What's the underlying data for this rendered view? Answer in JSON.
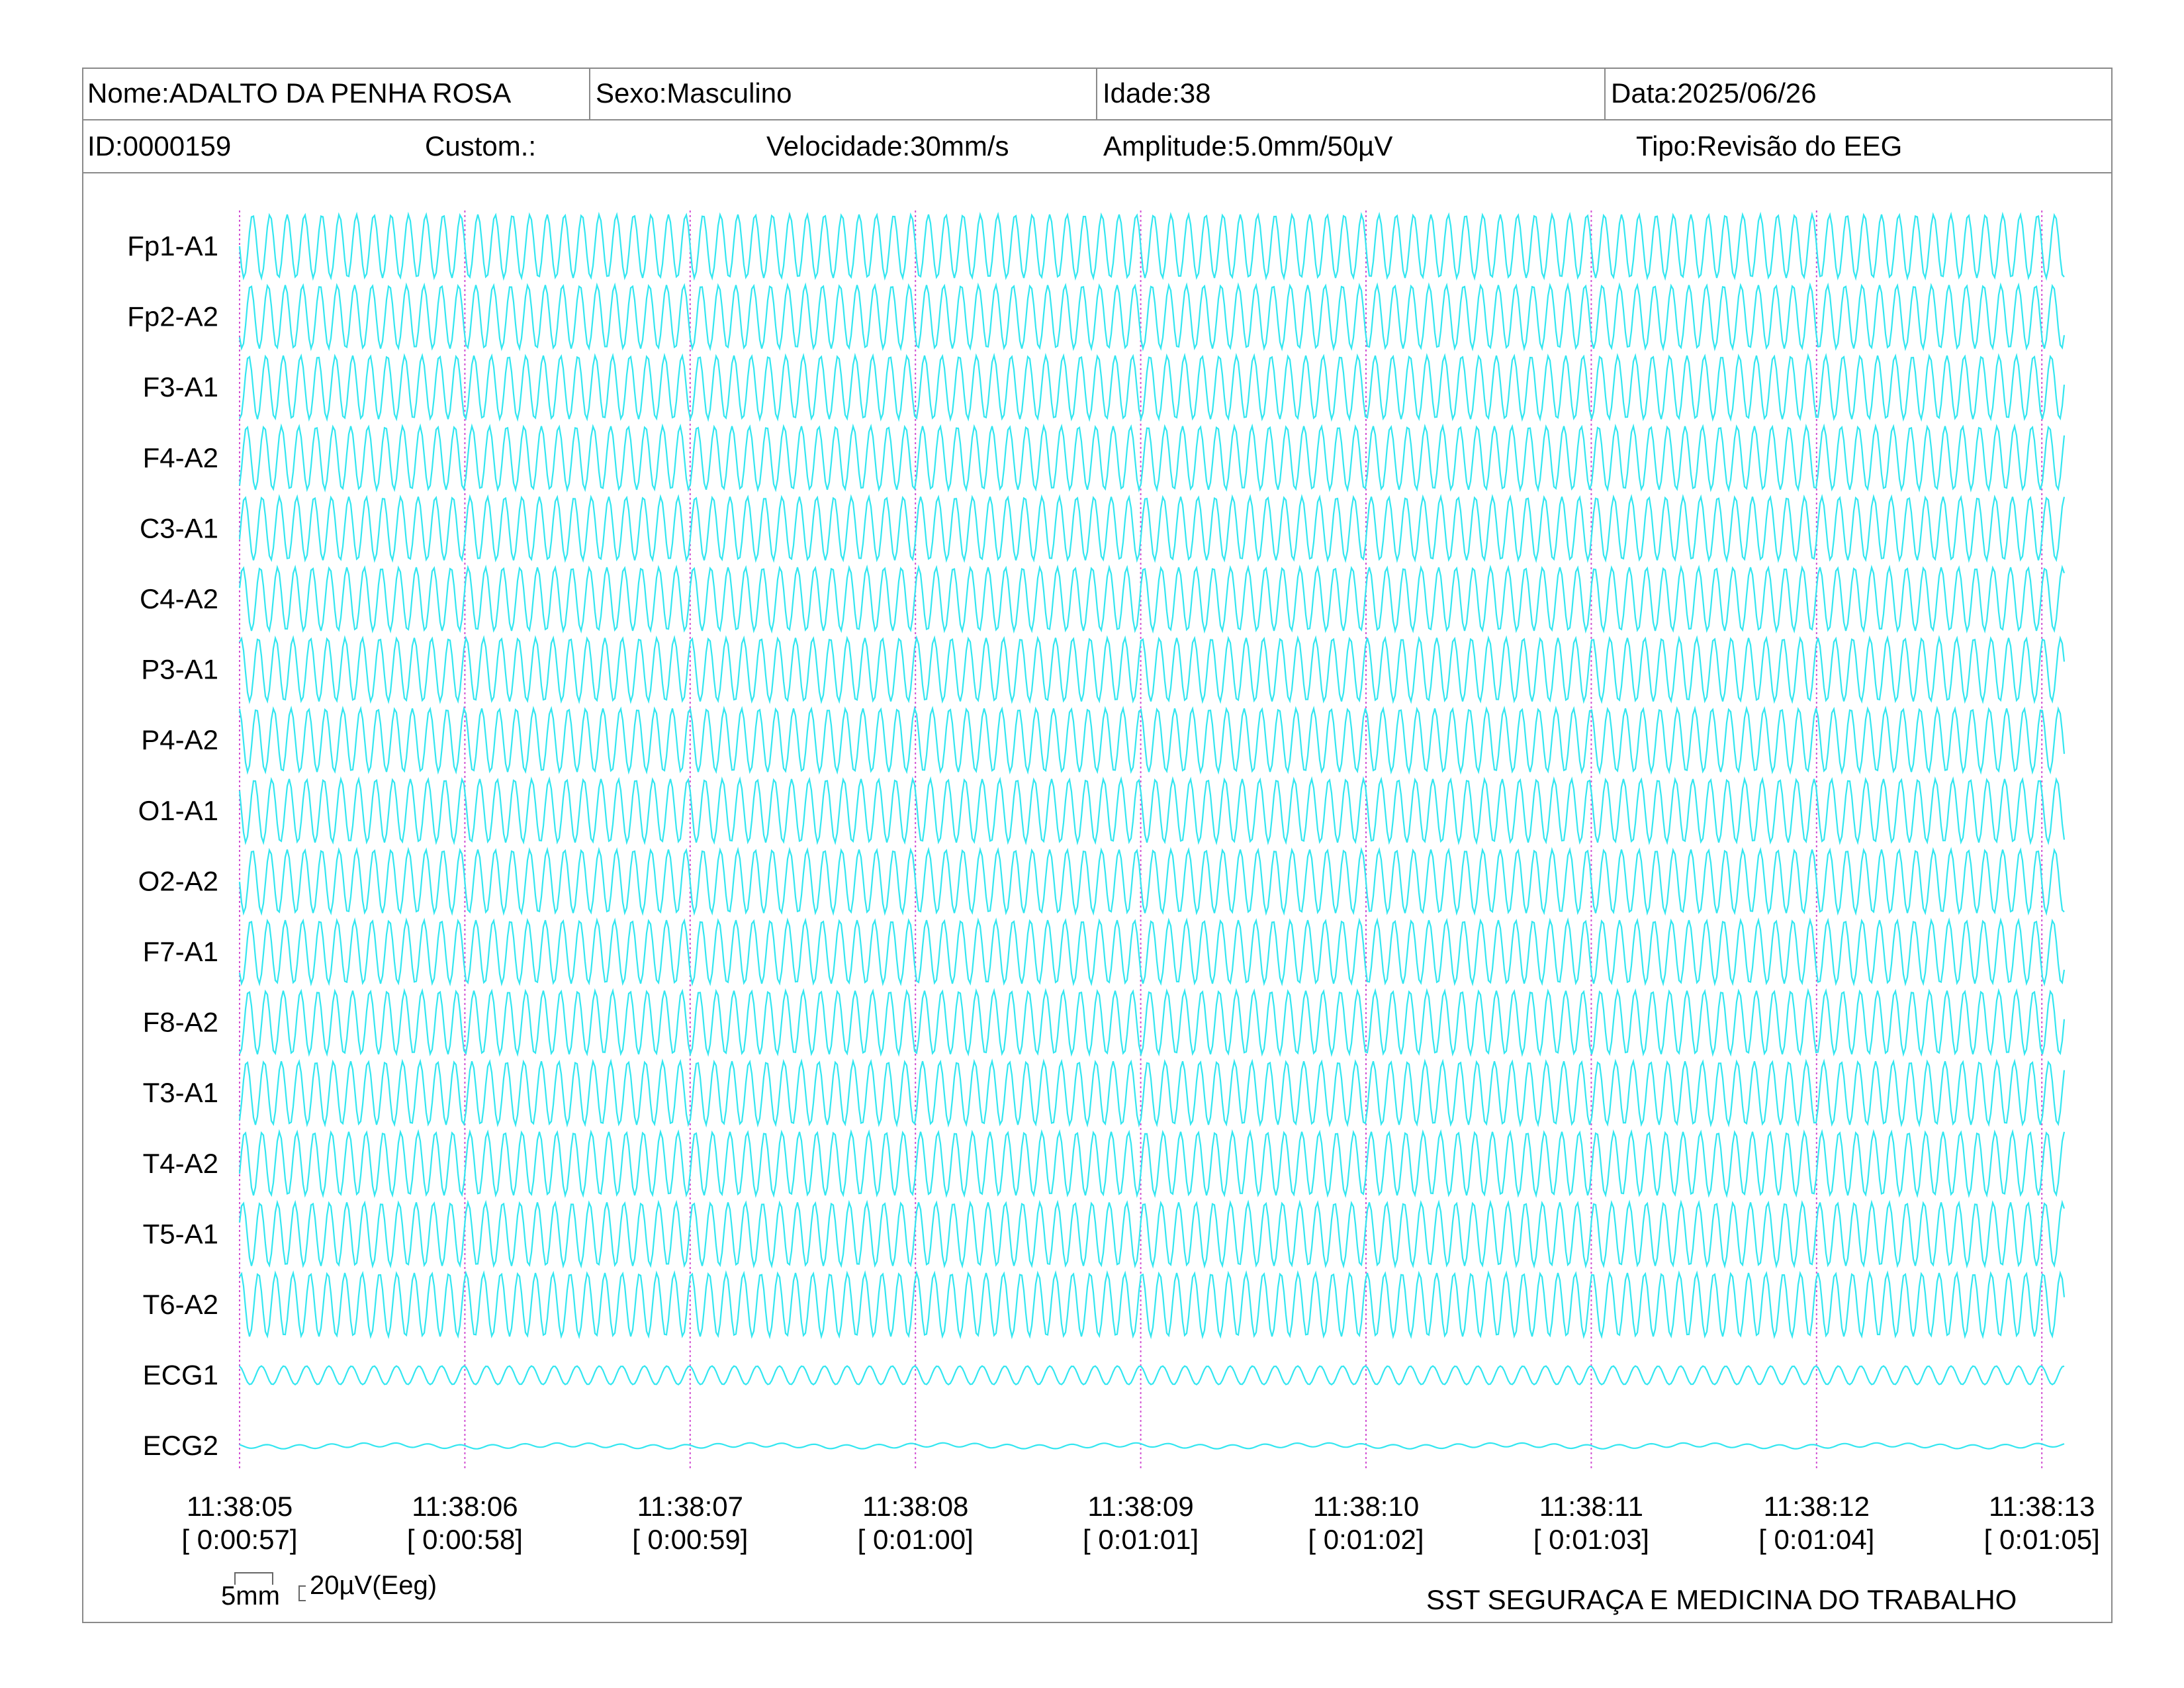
{
  "header": {
    "row1": [
      {
        "key": "nome",
        "text": "Nome:ADALTO DA PENHA ROSA"
      },
      {
        "key": "sexo",
        "text": "Sexo:Masculino"
      },
      {
        "key": "idade",
        "text": "Idade:38"
      },
      {
        "key": "data",
        "text": "Data:2025/06/26"
      }
    ],
    "row2": [
      {
        "key": "id",
        "text": "ID:0000159"
      },
      {
        "key": "custom",
        "text": "Custom.:"
      },
      {
        "key": "velocidade",
        "text": "Velocidade:30mm/s"
      },
      {
        "key": "amplitude",
        "text": "Amplitude:5.0mm/50µV"
      },
      {
        "key": "tipo",
        "text": "Tipo:Revisão do EEG"
      }
    ]
  },
  "chart_data": {
    "type": "line",
    "title": "",
    "channels": [
      "Fp1-A1",
      "Fp2-A2",
      "F3-A1",
      "F4-A2",
      "C3-A1",
      "C4-A2",
      "P3-A1",
      "P4-A2",
      "O1-A1",
      "O2-A2",
      "F7-A1",
      "F8-A2",
      "T3-A1",
      "T4-A2",
      "T5-A1",
      "T6-A2",
      "ECG1",
      "ECG2"
    ],
    "time_ticks": [
      "11:38:05",
      "11:38:06",
      "11:38:07",
      "11:38:08",
      "11:38:09",
      "11:38:10",
      "11:38:11",
      "11:38:12",
      "11:38:13"
    ],
    "elapsed_ticks": [
      "[ 0:00:57]",
      "[ 0:00:58]",
      "[ 0:00:59]",
      "[ 0:01:00]",
      "[ 0:01:01]",
      "[ 0:01:02]",
      "[ 0:01:03]",
      "[ 0:01:04]",
      "[ 0:01:05]"
    ],
    "x_range_seconds": [
      0,
      8.1
    ],
    "trace_color": "#33e6f0",
    "marker_color": "#d24fd2",
    "eeg_frequency_hz": 13,
    "ecg1_frequency_hz": 10
  },
  "scale_bar": {
    "time_label": "5mm",
    "amp_label": "20µV(Eeg)"
  },
  "footer": {
    "company": "SST SEGURAÇA E MEDICINA DO TRABALHO"
  }
}
